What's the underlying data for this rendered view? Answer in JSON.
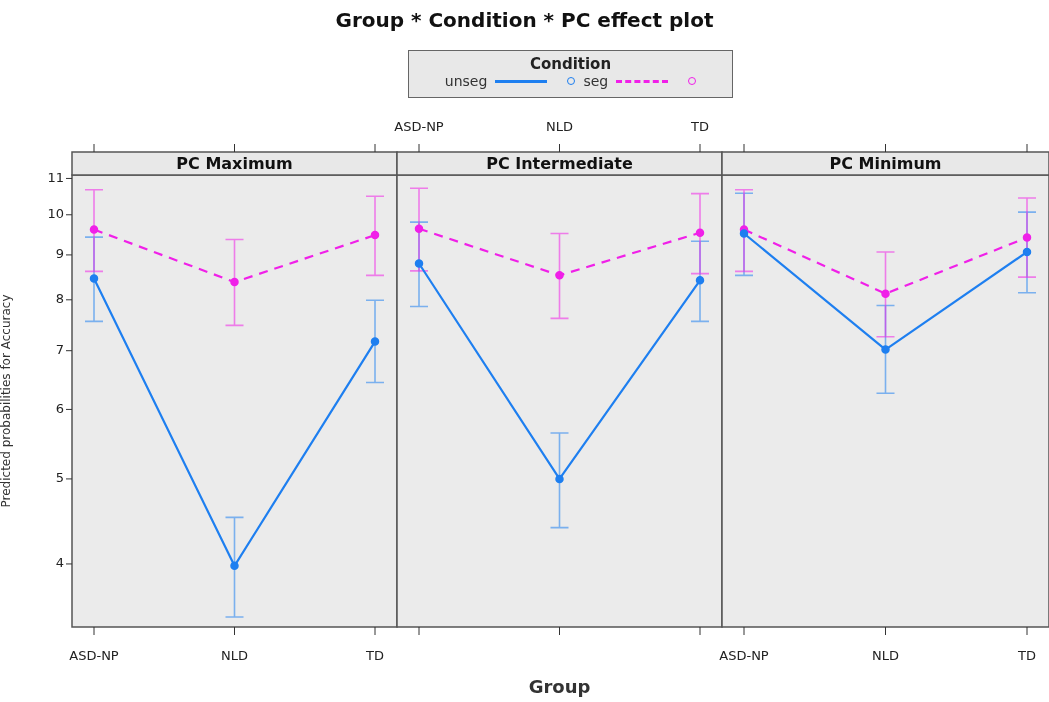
{
  "chart_data": [
    {
      "type": "line",
      "subtitle": "PC Maximum",
      "ylabel": "Predicted probabilities for Accuracy",
      "categories": [
        "ASD-NP",
        "NLD",
        "TD"
      ],
      "log": true,
      "ylim": [
        3.39,
        11.1
      ],
      "yticks": [
        4,
        5,
        6,
        7,
        8,
        9,
        10,
        11
      ],
      "marker": "circle",
      "series": [
        {
          "color": "#1e7ff0",
          "line_style": "solid",
          "values": [
            8.46,
            3.98,
            7.17
          ],
          "errors": [
            [
              7.56,
              9.43
            ],
            [
              3.48,
              4.52
            ],
            [
              6.44,
              7.99
            ]
          ]
        },
        {
          "color": "#f020e8",
          "line_style": "dashed",
          "values": [
            9.62,
            8.38,
            9.48
          ],
          "errors": [
            [
              8.62,
              10.68
            ],
            [
              7.48,
              9.37
            ],
            [
              8.53,
              10.5
            ]
          ]
        }
      ]
    },
    {
      "type": "line",
      "title": "Group * Condition * PC effect plot",
      "subtitle": "PC Intermediate",
      "xlabel": "Group",
      "legend_title": "Condition",
      "legend": "top",
      "categories": [
        "ASD-NP",
        "NLD",
        "TD"
      ],
      "log": true,
      "ylim": [
        3.39,
        11.1
      ],
      "yticks": [
        4,
        5,
        6,
        7,
        8,
        9,
        10,
        11
      ],
      "marker": "circle",
      "tick_labels": "x",
      "series": [
        {
          "name": "unseg",
          "color": "#1e7ff0",
          "line_style": "solid",
          "values": [
            8.8,
            5.0,
            8.42
          ],
          "errors": [
            [
              7.86,
              9.81
            ],
            [
              4.4,
              5.64
            ],
            [
              7.56,
              9.33
            ]
          ]
        },
        {
          "name": "seg",
          "color": "#f020e8",
          "line_style": "dashed",
          "values": [
            9.64,
            8.53,
            9.54
          ],
          "errors": [
            [
              8.63,
              10.72
            ],
            [
              7.62,
              9.52
            ],
            [
              8.57,
              10.57
            ]
          ]
        }
      ]
    },
    {
      "type": "line",
      "subtitle": "PC Minimum",
      "categories": [
        "ASD-NP",
        "NLD",
        "TD"
      ],
      "log": true,
      "ylim": [
        3.39,
        11.1
      ],
      "yticks": [
        4,
        5,
        6,
        7,
        8,
        9,
        10,
        11
      ],
      "marker": "circle",
      "tick_labels": "x",
      "series": [
        {
          "color": "#1e7ff0",
          "line_style": "solid",
          "values": [
            9.52,
            7.02,
            9.07
          ],
          "errors": [
            [
              8.53,
              10.58
            ],
            [
              6.26,
              7.88
            ],
            [
              8.15,
              10.07
            ]
          ]
        },
        {
          "color": "#f020e8",
          "line_style": "dashed",
          "values": [
            9.62,
            8.13,
            9.42
          ],
          "errors": [
            [
              8.62,
              10.68
            ],
            [
              7.26,
              9.07
            ],
            [
              8.49,
              10.45
            ]
          ]
        }
      ]
    }
  ]
}
